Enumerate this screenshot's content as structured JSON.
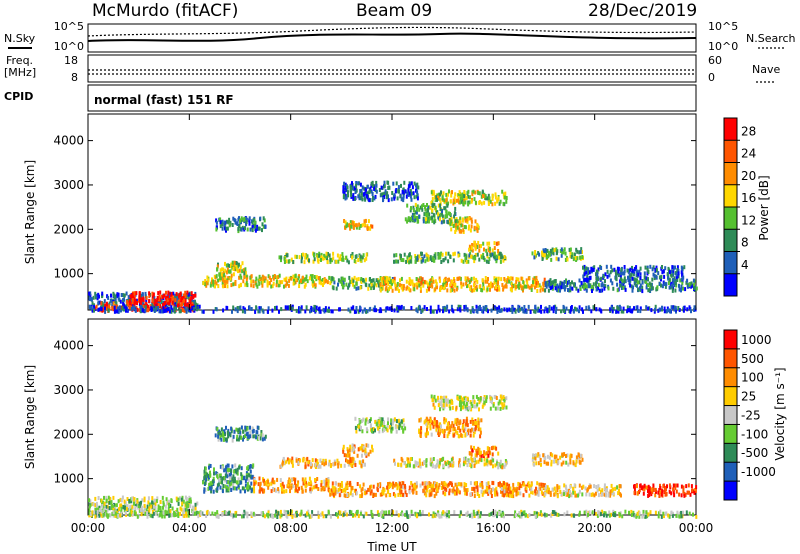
{
  "header": {
    "station": "McMurdo (fitACF)",
    "beam": "Beam 09",
    "date": "28/Dec/2019"
  },
  "status_panels": {
    "nsky_label": "N.Sky",
    "nsearch_label": "N.Search",
    "nsky_ticks": [
      "10^5",
      "10^0"
    ],
    "nsearch_ticks": [
      "10^5",
      "10^0"
    ],
    "freq_label_line1": "Freq.",
    "freq_label_line2": "[MHz]",
    "freq_ticks": [
      "18",
      "8"
    ],
    "nave_label": "Nave",
    "nave_ticks": [
      "60",
      "0"
    ],
    "cpid_label": "CPID",
    "cpid_text": "normal (fast) 151 RF"
  },
  "chart_data": [
    {
      "type": "heatmap",
      "name": "power-panel",
      "ylabel": "Slant Range [km]",
      "xlabel": "",
      "x_ticks": [
        "00:00",
        "04:00",
        "08:00",
        "12:00",
        "16:00",
        "20:00",
        "00:00"
      ],
      "x_tick_hours": [
        0,
        4,
        8,
        12,
        16,
        20,
        24
      ],
      "xlim_hours": [
        0,
        24
      ],
      "y_ticks": [
        1000,
        2000,
        3000,
        4000
      ],
      "ylim": [
        180,
        4600
      ],
      "colorbar": {
        "label": "Power [dB]",
        "tick_labels": [
          "4",
          "8",
          "12",
          "16",
          "20",
          "24",
          "28"
        ],
        "colors": [
          "#0000ff",
          "#1f5fb8",
          "#2e8b57",
          "#55c030",
          "#ffd700",
          "#ff8c00",
          "#ff5500",
          "#ff0000"
        ]
      },
      "regions": [
        {
          "t0": 0.0,
          "t1": 4.3,
          "r0": 200,
          "r1": 600,
          "level": 0.2
        },
        {
          "t0": 1.5,
          "t1": 4.2,
          "r0": 200,
          "r1": 620,
          "level": 0.95
        },
        {
          "t0": 0.2,
          "t1": 1.3,
          "r0": 200,
          "r1": 380,
          "level": 0.85
        },
        {
          "t0": 0.0,
          "t1": 24.0,
          "r0": 180,
          "r1": 300,
          "level": 0.15
        },
        {
          "t0": 4.5,
          "t1": 9.5,
          "r0": 750,
          "r1": 1000,
          "level": 0.55
        },
        {
          "t0": 5.0,
          "t1": 6.2,
          "r0": 1000,
          "r1": 1300,
          "level": 0.5
        },
        {
          "t0": 9.5,
          "t1": 12.0,
          "r0": 700,
          "r1": 950,
          "level": 0.4
        },
        {
          "t0": 11.5,
          "t1": 18.0,
          "r0": 650,
          "r1": 950,
          "level": 0.6
        },
        {
          "t0": 18.0,
          "t1": 24.0,
          "r0": 650,
          "r1": 900,
          "level": 0.25
        },
        {
          "t0": 7.5,
          "t1": 11.0,
          "r0": 1300,
          "r1": 1500,
          "level": 0.45
        },
        {
          "t0": 12.0,
          "t1": 16.5,
          "r0": 1300,
          "r1": 1500,
          "level": 0.4
        },
        {
          "t0": 10.0,
          "t1": 11.2,
          "r0": 2050,
          "r1": 2250,
          "level": 0.6
        },
        {
          "t0": 14.2,
          "t1": 15.4,
          "r0": 1950,
          "r1": 2300,
          "level": 0.6
        },
        {
          "t0": 15.0,
          "t1": 16.2,
          "r0": 1550,
          "r1": 1750,
          "level": 0.6
        },
        {
          "t0": 13.5,
          "t1": 16.5,
          "r0": 2600,
          "r1": 2900,
          "level": 0.5
        },
        {
          "t0": 12.5,
          "t1": 14.5,
          "r0": 2200,
          "r1": 2600,
          "level": 0.35
        },
        {
          "t0": 17.5,
          "t1": 19.5,
          "r0": 1350,
          "r1": 1600,
          "level": 0.4
        },
        {
          "t0": 19.5,
          "t1": 23.5,
          "r0": 900,
          "r1": 1200,
          "level": 0.2
        },
        {
          "t0": 10.0,
          "t1": 13.0,
          "r0": 2700,
          "r1": 3100,
          "level": 0.2
        },
        {
          "t0": 5.0,
          "t1": 7.0,
          "r0": 2000,
          "r1": 2300,
          "level": 0.25
        }
      ]
    },
    {
      "type": "heatmap",
      "name": "velocity-panel",
      "ylabel": "Slant Range [km]",
      "xlabel": "Time UT",
      "x_ticks": [
        "00:00",
        "04:00",
        "08:00",
        "12:00",
        "16:00",
        "20:00",
        "00:00"
      ],
      "x_tick_hours": [
        0,
        4,
        8,
        12,
        16,
        20,
        24
      ],
      "xlim_hours": [
        0,
        24
      ],
      "y_ticks": [
        1000,
        2000,
        3000,
        4000
      ],
      "ylim": [
        180,
        4600
      ],
      "colorbar": {
        "label": "Velocity  [m s⁻¹]",
        "tick_labels": [
          "1000",
          "500",
          "100",
          "25",
          "-25",
          "-100",
          "-500",
          "-1000"
        ],
        "colors": [
          "#0000ff",
          "#1f5fb8",
          "#2e8b57",
          "#66cc33",
          "#c8c8c8",
          "#ffcc00",
          "#ff8c00",
          "#ff5500",
          "#ff0000"
        ]
      },
      "regions": [
        {
          "t0": 0.0,
          "t1": 4.3,
          "r0": 200,
          "r1": 620,
          "level": 0.45
        },
        {
          "t0": 0.0,
          "t1": 24.0,
          "r0": 180,
          "r1": 300,
          "level": 0.45
        },
        {
          "t0": 4.5,
          "t1": 6.5,
          "r0": 750,
          "r1": 1350,
          "level": 0.3
        },
        {
          "t0": 6.5,
          "t1": 9.5,
          "r0": 750,
          "r1": 1050,
          "level": 0.7
        },
        {
          "t0": 9.5,
          "t1": 18.0,
          "r0": 650,
          "r1": 950,
          "level": 0.7
        },
        {
          "t0": 18.0,
          "t1": 21.0,
          "r0": 650,
          "r1": 900,
          "level": 0.6
        },
        {
          "t0": 21.5,
          "t1": 24.0,
          "r0": 650,
          "r1": 900,
          "level": 0.9
        },
        {
          "t0": 7.5,
          "t1": 11.0,
          "r0": 1300,
          "r1": 1500,
          "level": 0.65
        },
        {
          "t0": 12.0,
          "t1": 16.5,
          "r0": 1300,
          "r1": 1500,
          "level": 0.55
        },
        {
          "t0": 10.0,
          "t1": 11.2,
          "r0": 1550,
          "r1": 1800,
          "level": 0.65
        },
        {
          "t0": 13.0,
          "t1": 15.5,
          "r0": 2000,
          "r1": 2400,
          "level": 0.7
        },
        {
          "t0": 13.5,
          "t1": 16.5,
          "r0": 2600,
          "r1": 2900,
          "level": 0.5
        },
        {
          "t0": 15.0,
          "t1": 16.2,
          "r0": 1550,
          "r1": 1750,
          "level": 0.75
        },
        {
          "t0": 17.5,
          "t1": 19.5,
          "r0": 1350,
          "r1": 1600,
          "level": 0.6
        },
        {
          "t0": 10.5,
          "t1": 12.5,
          "r0": 2100,
          "r1": 2400,
          "level": 0.45
        },
        {
          "t0": 5.0,
          "t1": 7.0,
          "r0": 1900,
          "r1": 2200,
          "level": 0.3
        }
      ]
    }
  ]
}
